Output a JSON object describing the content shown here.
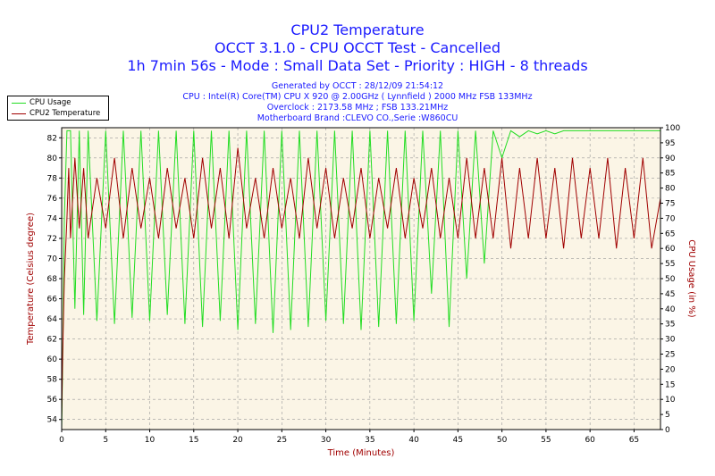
{
  "header": {
    "title": "CPU2 Temperature",
    "subtitle1": "OCCT 3.1.0 - CPU OCCT Test - Cancelled",
    "subtitle2": "1h 7min 56s - Mode : Small Data Set - Priority : HIGH - 8 threads"
  },
  "info": {
    "generated": "Generated by OCCT : 28/12/09 21:54:12",
    "cpu": "CPU : Intel(R) Core(TM) CPU X 920 @ 2.00GHz ( Lynnfield ) 2000 MHz FSB 133MHz",
    "overclock": "Overclock : 2173.58 MHz ; FSB 133.21MHz",
    "motherboard": "Motherboard Brand :CLEVO CO.,Serie :W860CU"
  },
  "colors": {
    "cpu_usage": "#22dd22",
    "temperature": "#a00000",
    "plot_background": "#fbf5e6",
    "grid": "#999999",
    "title": "#1a1aff"
  },
  "chart_data": {
    "type": "line",
    "title": "CPU2 Temperature",
    "xlabel": "Time (Minutes)",
    "ylabel_left": "Temperature (Celsius degree)",
    "ylabel_right": "CPU Usage (in %)",
    "xlim": [
      0,
      68
    ],
    "ylim_left": [
      53,
      83
    ],
    "ylim_right": [
      0,
      100
    ],
    "x_ticks": [
      "0",
      "5",
      "10",
      "15",
      "20",
      "25",
      "30",
      "35",
      "40",
      "45",
      "50",
      "55",
      "60",
      "65"
    ],
    "y_ticks_left": [
      "54",
      "56",
      "58",
      "60",
      "62",
      "64",
      "66",
      "68",
      "70",
      "72",
      "74",
      "76",
      "78",
      "80",
      "82"
    ],
    "y_ticks_right": [
      "0",
      "5",
      "10",
      "15",
      "20",
      "25",
      "30",
      "35",
      "40",
      "45",
      "50",
      "55",
      "60",
      "65",
      "70",
      "75",
      "80",
      "85",
      "90",
      "95",
      "100"
    ],
    "grid": true,
    "legend_position": "top-left",
    "series": [
      {
        "name": "CPU Usage",
        "axis": "right",
        "x": [
          0,
          0.1,
          0.3,
          0.6,
          0.8,
          1.0,
          1.5,
          2.0,
          2.5,
          3.0,
          4.0,
          5.0,
          6.0,
          7.0,
          8.0,
          9.0,
          10.0,
          11.0,
          12.0,
          13.0,
          14.0,
          15.0,
          16.0,
          17.0,
          18.0,
          19.0,
          20.0,
          21.0,
          22.0,
          23.0,
          24.0,
          25.0,
          26.0,
          27.0,
          28.0,
          29.0,
          30.0,
          31.0,
          32.0,
          33.0,
          34.0,
          35.0,
          36.0,
          37.0,
          38.0,
          39.0,
          40.0,
          41.0,
          42.0,
          43.0,
          44.0,
          45.0,
          46.0,
          47.0,
          48.0,
          49.0,
          50.0,
          51.0,
          52.0,
          53.0,
          54.0,
          55.0,
          56.0,
          57.0,
          58.0,
          59.0,
          60.0,
          61.0,
          62.0,
          63.0,
          64.0,
          65.0,
          66.0,
          67.0,
          68.0
        ],
        "values": [
          0,
          20,
          70,
          99,
          99,
          99,
          40,
          99,
          38,
          99,
          36,
          99,
          35,
          99,
          37,
          99,
          36,
          99,
          38,
          99,
          35,
          99,
          34,
          99,
          36,
          99,
          33,
          99,
          35,
          99,
          32,
          99,
          33,
          99,
          34,
          99,
          36,
          99,
          35,
          99,
          33,
          99,
          34,
          99,
          35,
          99,
          36,
          99,
          45,
          99,
          34,
          99,
          50,
          99,
          55,
          99,
          90,
          99,
          97,
          99,
          98,
          99,
          98,
          99,
          99,
          99,
          99,
          99,
          99,
          99,
          99,
          99,
          99,
          99,
          99
        ]
      },
      {
        "name": "CPU2 Temperature",
        "axis": "left",
        "x": [
          0,
          0.1,
          0.3,
          0.6,
          0.8,
          1.0,
          1.5,
          2.0,
          2.5,
          3.0,
          4.0,
          5.0,
          6.0,
          7.0,
          8.0,
          9.0,
          10.0,
          11.0,
          12.0,
          13.0,
          14.0,
          15.0,
          16.0,
          17.0,
          18.0,
          19.0,
          20.0,
          21.0,
          22.0,
          23.0,
          24.0,
          25.0,
          26.0,
          27.0,
          28.0,
          29.0,
          30.0,
          31.0,
          32.0,
          33.0,
          34.0,
          35.0,
          36.0,
          37.0,
          38.0,
          39.0,
          40.0,
          41.0,
          42.0,
          43.0,
          44.0,
          45.0,
          46.0,
          47.0,
          48.0,
          49.0,
          50.0,
          51.0,
          52.0,
          53.0,
          54.0,
          55.0,
          56.0,
          57.0,
          58.0,
          59.0,
          60.0,
          61.0,
          62.0,
          63.0,
          64.0,
          65.0,
          66.0,
          67.0,
          68.0
        ],
        "values": [
          54,
          60,
          68,
          74,
          79,
          72,
          80,
          73,
          79,
          72,
          78,
          73,
          80,
          72,
          79,
          73,
          78,
          72,
          79,
          73,
          78,
          72,
          80,
          73,
          79,
          72,
          81,
          73,
          78,
          72,
          79,
          73,
          78,
          72,
          80,
          73,
          79,
          72,
          78,
          73,
          79,
          72,
          78,
          73,
          79,
          72,
          78,
          73,
          79,
          72,
          78,
          72,
          80,
          72,
          79,
          72,
          80,
          71,
          79,
          72,
          80,
          72,
          79,
          71,
          80,
          72,
          79,
          72,
          80,
          71,
          79,
          72,
          80,
          71,
          76
        ]
      }
    ]
  }
}
